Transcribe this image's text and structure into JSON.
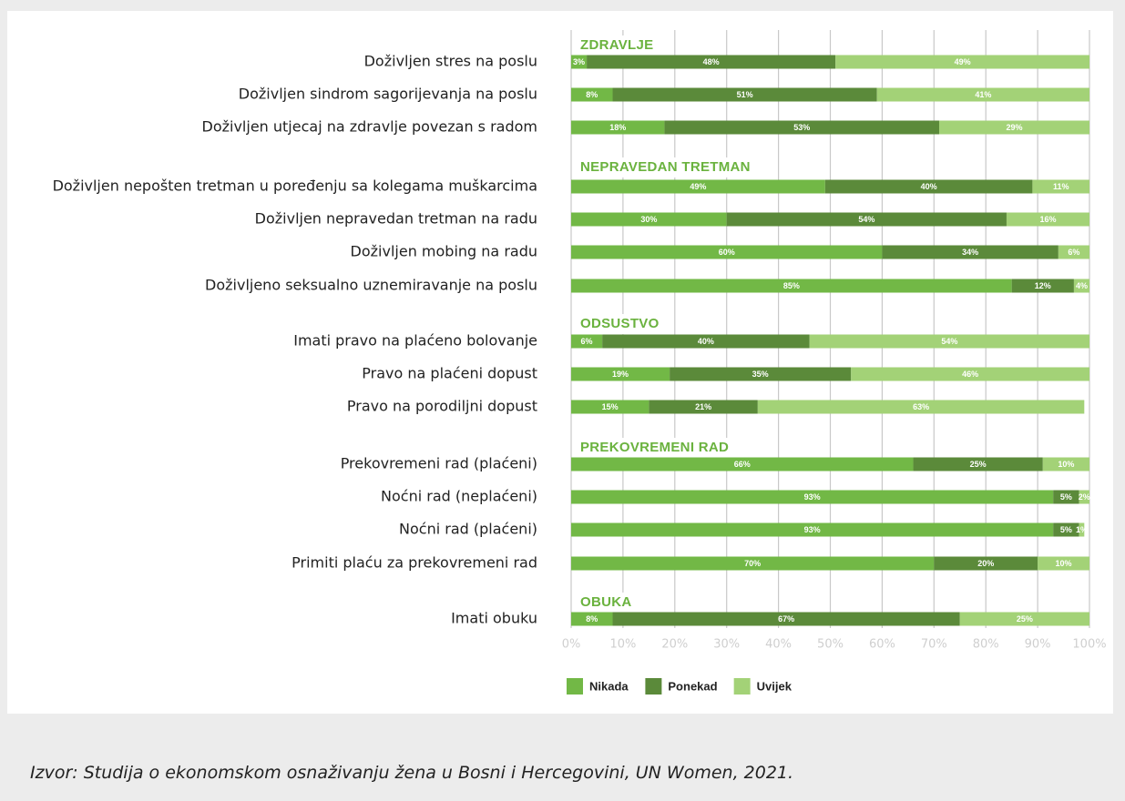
{
  "chart_data": {
    "type": "bar",
    "orientation": "horizontal",
    "stacked": true,
    "xlim": [
      0,
      100
    ],
    "x_ticks": [
      "0%",
      "10%",
      "20%",
      "30%",
      "40%",
      "50%",
      "60%",
      "70%",
      "80%",
      "90%",
      "100%"
    ],
    "grid": "vertical",
    "legend_position": "bottom",
    "series_names": [
      "Nikada",
      "Ponekad",
      "Uvijek"
    ],
    "colors": [
      "#72b846",
      "#5b8a3a",
      "#a3d277"
    ],
    "group_label_color": "#6ab23e",
    "groups": [
      {
        "name": "ZDRAVLJE",
        "bars": [
          {
            "label": "Doživljen stres na poslu",
            "values": [
              3,
              48,
              49
            ],
            "value_labels": [
              "3%",
              "48%",
              "49%"
            ]
          },
          {
            "label": "Doživljen sindrom sagorijevanja na poslu",
            "values": [
              8,
              51,
              41
            ],
            "value_labels": [
              "8%",
              "51%",
              "41%"
            ]
          },
          {
            "label": "Doživljen utjecaj na zdravlje povezan s radom",
            "values": [
              18,
              53,
              29
            ],
            "value_labels": [
              "18%",
              "53%",
              "29%"
            ]
          }
        ]
      },
      {
        "name": "NEPRAVEDAN TRETMAN",
        "bars": [
          {
            "label": "Doživljen nepošten tretman u poređenju sa kolegama muškarcima",
            "values": [
              49,
              40,
              11
            ],
            "value_labels": [
              "49%",
              "40%",
              "11%"
            ]
          },
          {
            "label": "Doživljen nepravedan tretman na radu",
            "values": [
              30,
              54,
              16
            ],
            "value_labels": [
              "30%",
              "54%",
              "16%"
            ]
          },
          {
            "label": "Doživljen mobing na radu",
            "values": [
              60,
              34,
              6
            ],
            "value_labels": [
              "60%",
              "34%",
              "6%"
            ]
          },
          {
            "label": "Doživljeno seksualno uznemiravanje na poslu",
            "values": [
              85,
              12,
              4
            ],
            "value_labels": [
              "85%",
              "12%",
              "4%"
            ]
          }
        ]
      },
      {
        "name": "ODSUSTVO",
        "bars": [
          {
            "label": "Imati pravo na plaćeno bolovanje",
            "values": [
              6,
              40,
              54
            ],
            "value_labels": [
              "6%",
              "40%",
              "54%"
            ]
          },
          {
            "label": "Pravo na plaćeni dopust",
            "values": [
              19,
              35,
              46
            ],
            "value_labels": [
              "19%",
              "35%",
              "46%"
            ]
          },
          {
            "label": "Pravo na porodiljni dopust",
            "values": [
              15,
              21,
              63
            ],
            "value_labels": [
              "15%",
              "21%",
              "63%"
            ]
          }
        ]
      },
      {
        "name": "PREKOVREMENI RAD",
        "bars": [
          {
            "label": "Prekovremeni rad (plaćeni)",
            "values": [
              66,
              25,
              10
            ],
            "value_labels": [
              "66%",
              "25%",
              "10%"
            ]
          },
          {
            "label": "Noćni rad (neplaćeni)",
            "values": [
              93,
              5,
              2
            ],
            "value_labels": [
              "93%",
              "5%",
              "2%"
            ]
          },
          {
            "label": "Noćni rad (plaćeni)",
            "values": [
              93,
              5,
              1
            ],
            "value_labels": [
              "93%",
              "5%",
              "1%"
            ]
          },
          {
            "label": "Primiti plaću za prekovremeni rad",
            "values": [
              70,
              20,
              10
            ],
            "value_labels": [
              "70%",
              "20%",
              "10%"
            ]
          }
        ]
      },
      {
        "name": "OBUKA",
        "bars": [
          {
            "label": "Imati obuku",
            "values": [
              8,
              67,
              25
            ],
            "value_labels": [
              "8%",
              "67%",
              "25%"
            ]
          }
        ]
      }
    ]
  },
  "source_note": "Izvor: Studija o ekonomskom osnaživanju žena u Bosni i Hercegovini, UN Women, 2021."
}
